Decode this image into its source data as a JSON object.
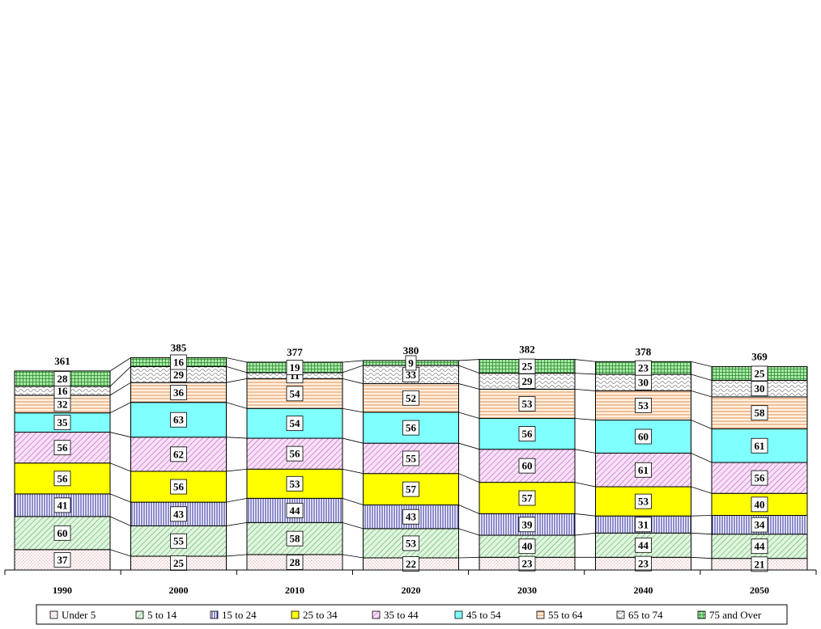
{
  "chart_data": {
    "type": "bar",
    "stacked": true,
    "categories": [
      "1990",
      "2000",
      "2010",
      "2020",
      "2030",
      "2040",
      "2050"
    ],
    "totals": [
      361,
      385,
      377,
      380,
      382,
      378,
      369
    ],
    "series": [
      {
        "name": "Under 5",
        "values": [
          37,
          25,
          28,
          22,
          23,
          23,
          21
        ],
        "color": "#ffffff",
        "pattern": "dots-red"
      },
      {
        "name": "5 to 14",
        "values": [
          60,
          55,
          58,
          53,
          40,
          44,
          44
        ],
        "color": "#cdeecd",
        "pattern": "diag-green"
      },
      {
        "name": "15 to 24",
        "values": [
          41,
          43,
          44,
          43,
          39,
          31,
          34
        ],
        "color": "#ffffff",
        "pattern": "vert-blue"
      },
      {
        "name": "25 to 34",
        "values": [
          56,
          56,
          53,
          57,
          57,
          53,
          40
        ],
        "color": "#ffff00",
        "pattern": "solid"
      },
      {
        "name": "35 to 44",
        "values": [
          56,
          62,
          56,
          55,
          60,
          61,
          56
        ],
        "color": "#f4d4f4",
        "pattern": "diag-magenta"
      },
      {
        "name": "45 to 54",
        "values": [
          35,
          63,
          54,
          56,
          56,
          60,
          61
        ],
        "color": "#80ffff",
        "pattern": "solid-cyan"
      },
      {
        "name": "55 to 64",
        "values": [
          32,
          36,
          54,
          52,
          53,
          53,
          58
        ],
        "color": "#fde6cc",
        "pattern": "horiz-orange"
      },
      {
        "name": "65 to 74",
        "values": [
          16,
          29,
          11,
          33,
          29,
          30,
          30
        ],
        "color": "#ffffff",
        "pattern": "wave-gray"
      },
      {
        "name": "75 and Over",
        "values": [
          28,
          16,
          19,
          9,
          25,
          23,
          25
        ],
        "color": "#9be59b",
        "pattern": "grid-green"
      }
    ],
    "ylim": [
      0,
      385
    ],
    "legend_position": "bottom",
    "grid": false
  }
}
